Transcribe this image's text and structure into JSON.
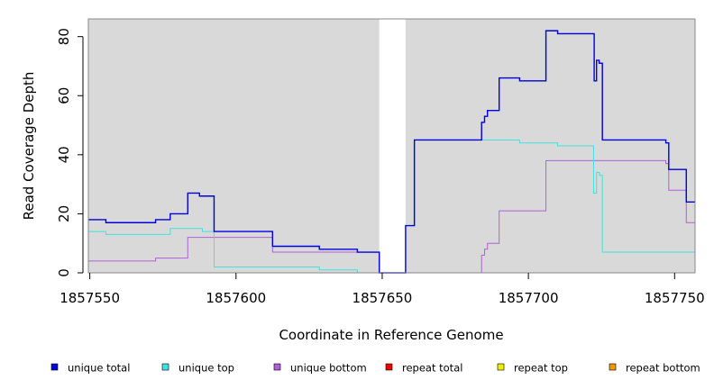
{
  "chart_data": {
    "type": "line",
    "xlabel": "Coordinate in Reference Genome",
    "ylabel": "Read Coverage Depth",
    "xlim": [
      1857549.5,
      1857757
    ],
    "ylim": [
      0,
      86
    ],
    "x_ticks": [
      1857550,
      1857600,
      1857650,
      1857700,
      1857750
    ],
    "x_tick_labels": [
      "1857550",
      "1857600",
      "1857650",
      "1857700",
      "1857750"
    ],
    "y_ticks": [
      0,
      20,
      40,
      60,
      80
    ],
    "y_tick_labels": [
      "0",
      "20",
      "40",
      "60",
      "80"
    ],
    "background": "#d9d9d9",
    "gap_region": [
      1857649,
      1857658
    ],
    "gap_color": "#ffffff",
    "legend_position": "bottom",
    "series": [
      {
        "name": "unique total",
        "color": "#0000dd",
        "points": [
          [
            1857549.5,
            18
          ],
          [
            1857555.5,
            18
          ],
          [
            1857555.5,
            17
          ],
          [
            1857572.5,
            17
          ],
          [
            1857572.5,
            18
          ],
          [
            1857577.5,
            18
          ],
          [
            1857577.5,
            20
          ],
          [
            1857583.5,
            20
          ],
          [
            1857583.5,
            27
          ],
          [
            1857587.5,
            27
          ],
          [
            1857587.5,
            26
          ],
          [
            1857592.5,
            26
          ],
          [
            1857592.5,
            14
          ],
          [
            1857612.5,
            14
          ],
          [
            1857612.5,
            9
          ],
          [
            1857628.5,
            9
          ],
          [
            1857628.5,
            8
          ],
          [
            1857641.5,
            8
          ],
          [
            1857641.5,
            7
          ],
          [
            1857649,
            7
          ],
          [
            1857649,
            0
          ],
          [
            1857658,
            0
          ],
          [
            1857658,
            16
          ],
          [
            1857661,
            16
          ],
          [
            1857661,
            45
          ],
          [
            1857684,
            45
          ],
          [
            1857684,
            51
          ],
          [
            1857685,
            51
          ],
          [
            1857685,
            53
          ],
          [
            1857686,
            53
          ],
          [
            1857686,
            55
          ],
          [
            1857690,
            55
          ],
          [
            1857690,
            66
          ],
          [
            1857697,
            66
          ],
          [
            1857697,
            65
          ],
          [
            1857706,
            65
          ],
          [
            1857706,
            82
          ],
          [
            1857710,
            82
          ],
          [
            1857710,
            81
          ],
          [
            1857722.5,
            81
          ],
          [
            1857722.5,
            65
          ],
          [
            1857723.3,
            65
          ],
          [
            1857723.3,
            72
          ],
          [
            1857724.2,
            72
          ],
          [
            1857724.2,
            71
          ],
          [
            1857725.3,
            71
          ],
          [
            1857725.3,
            45
          ],
          [
            1857747,
            45
          ],
          [
            1857747,
            44
          ],
          [
            1857748,
            44
          ],
          [
            1857748,
            35
          ],
          [
            1857754,
            35
          ],
          [
            1857754,
            24
          ],
          [
            1857757,
            24
          ]
        ]
      },
      {
        "name": "unique top",
        "color": "#44e0e0",
        "points": [
          [
            1857549.5,
            14
          ],
          [
            1857555.5,
            14
          ],
          [
            1857555.5,
            13
          ],
          [
            1857577.5,
            13
          ],
          [
            1857577.5,
            15
          ],
          [
            1857588.5,
            15
          ],
          [
            1857588.5,
            14
          ],
          [
            1857592.5,
            14
          ],
          [
            1857592.5,
            2
          ],
          [
            1857628.5,
            2
          ],
          [
            1857628.5,
            1
          ],
          [
            1857641.5,
            1
          ],
          [
            1857641.5,
            0
          ],
          [
            1857649,
            0
          ],
          [
            1857658,
            0
          ],
          [
            1857658,
            16
          ],
          [
            1857661,
            16
          ],
          [
            1857661,
            45
          ],
          [
            1857697,
            45
          ],
          [
            1857697,
            44
          ],
          [
            1857710,
            44
          ],
          [
            1857710,
            43
          ],
          [
            1857722.3,
            43
          ],
          [
            1857722.3,
            27
          ],
          [
            1857723.3,
            27
          ],
          [
            1857723.3,
            34
          ],
          [
            1857724.3,
            34
          ],
          [
            1857724.3,
            33
          ],
          [
            1857725.3,
            33
          ],
          [
            1857725.3,
            7
          ],
          [
            1857757,
            7
          ]
        ]
      },
      {
        "name": "unique bottom",
        "color": "#b060d8",
        "points": [
          [
            1857549.5,
            4
          ],
          [
            1857572.5,
            4
          ],
          [
            1857572.5,
            5
          ],
          [
            1857583.5,
            5
          ],
          [
            1857583.5,
            12
          ],
          [
            1857612.5,
            12
          ],
          [
            1857612.5,
            7
          ],
          [
            1857649,
            7
          ],
          [
            1857649,
            0
          ],
          [
            1857684,
            0
          ],
          [
            1857684,
            6
          ],
          [
            1857685,
            6
          ],
          [
            1857685,
            8
          ],
          [
            1857686,
            8
          ],
          [
            1857686,
            10
          ],
          [
            1857690,
            10
          ],
          [
            1857690,
            21
          ],
          [
            1857706,
            21
          ],
          [
            1857706,
            38
          ],
          [
            1857747,
            38
          ],
          [
            1857747,
            37
          ],
          [
            1857748,
            37
          ],
          [
            1857748,
            28
          ],
          [
            1857754,
            28
          ],
          [
            1857754,
            17
          ],
          [
            1857757,
            17
          ]
        ]
      },
      {
        "name": "repeat total",
        "color": "#ee0000",
        "points": [
          [
            1857549.5,
            0
          ],
          [
            1857757,
            0
          ]
        ]
      },
      {
        "name": "repeat top",
        "color": "#eeee00",
        "points": [
          [
            1857549.5,
            0
          ],
          [
            1857757,
            0
          ]
        ]
      },
      {
        "name": "repeat bottom",
        "color": "#ee9900",
        "points": [
          [
            1857549.5,
            0
          ],
          [
            1857757,
            0
          ]
        ]
      }
    ]
  }
}
